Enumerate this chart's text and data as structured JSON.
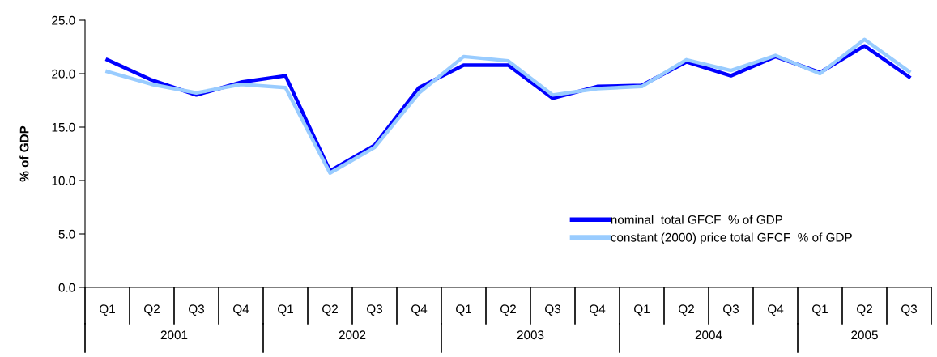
{
  "chart_data": {
    "type": "line",
    "ylabel": "% of GDP",
    "categories": [
      "Q1",
      "Q2",
      "Q3",
      "Q4",
      "Q1",
      "Q2",
      "Q3",
      "Q4",
      "Q1",
      "Q2",
      "Q3",
      "Q4",
      "Q1",
      "Q2",
      "Q3",
      "Q4",
      "Q1",
      "Q2",
      "Q3"
    ],
    "annotations": [
      "2001",
      "2002",
      "2003",
      "2004",
      "2005"
    ],
    "series": [
      {
        "name": "nominal  total GFCF  % of GDP",
        "color": "#0000ff",
        "values": [
          21.3,
          19.4,
          18.0,
          19.2,
          19.8,
          10.9,
          13.3,
          18.7,
          20.8,
          20.8,
          17.7,
          18.8,
          18.9,
          21.1,
          19.8,
          21.6,
          20.1,
          22.6,
          19.7
        ]
      },
      {
        "name": "constant (2000) price total GFCF  % of GDP",
        "color": "#99ccff",
        "values": [
          20.2,
          19.0,
          18.2,
          19.0,
          18.7,
          10.7,
          13.1,
          18.2,
          21.6,
          21.2,
          18.0,
          18.6,
          18.8,
          21.3,
          20.3,
          21.7,
          20.0,
          23.2,
          20.2
        ]
      }
    ],
    "ylim": [
      0,
      25
    ],
    "yticks": [
      {
        "value": 0,
        "label": "0.0"
      },
      {
        "value": 5,
        "label": "5.0"
      },
      {
        "value": 10,
        "label": "10.0"
      },
      {
        "value": 15,
        "label": "15.0"
      },
      {
        "value": 20,
        "label": "20.0"
      },
      {
        "value": 25,
        "label": "25.0"
      }
    ],
    "grid": false,
    "legend": "bottom right"
  }
}
